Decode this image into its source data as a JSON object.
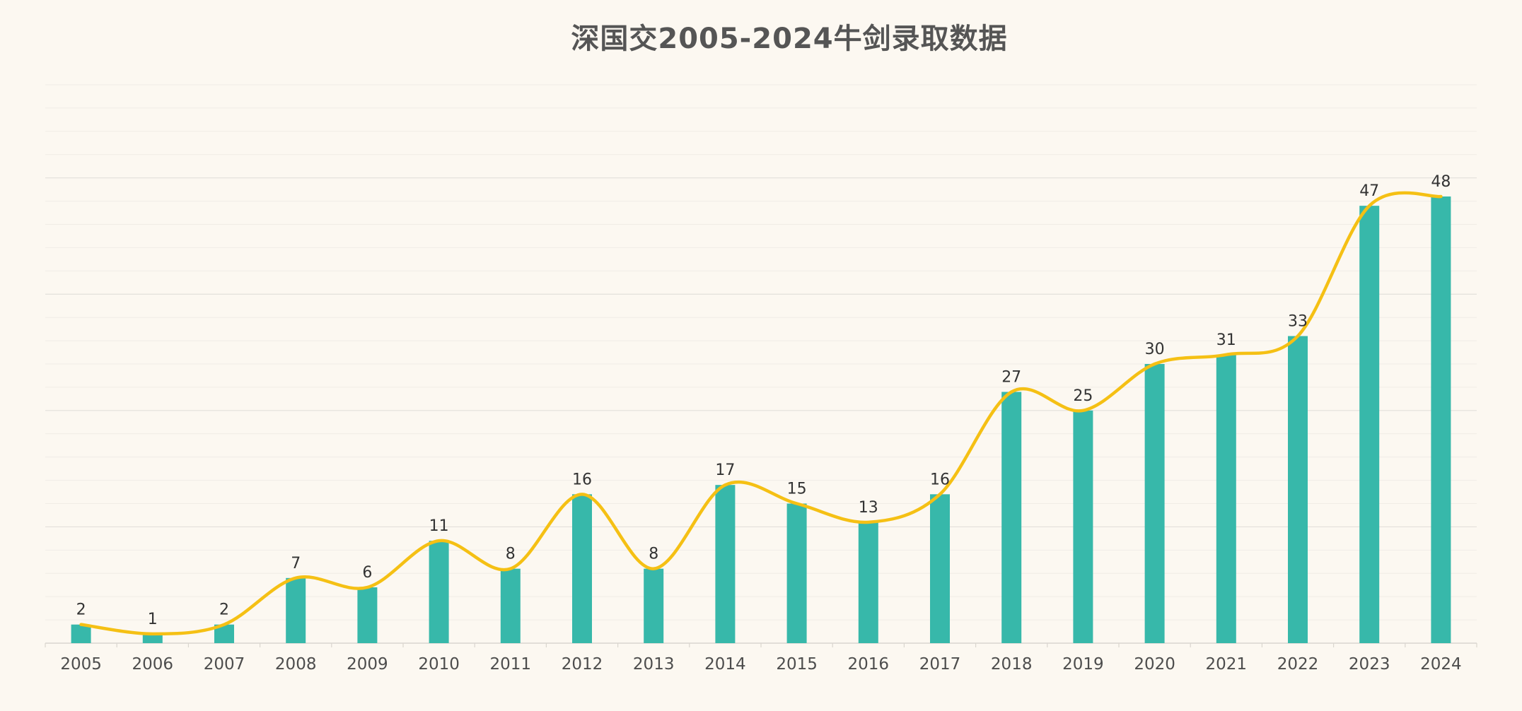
{
  "chart_data": {
    "type": "bar",
    "title": "深国交2005-2024牛剑录取数据",
    "categories": [
      "2005",
      "2006",
      "2007",
      "2008",
      "2009",
      "2010",
      "2011",
      "2012",
      "2013",
      "2014",
      "2015",
      "2016",
      "2017",
      "2018",
      "2019",
      "2020",
      "2021",
      "2022",
      "2023",
      "2024"
    ],
    "series": [
      {
        "type": "bar",
        "values": [
          2,
          1,
          2,
          7,
          6,
          11,
          8,
          16,
          8,
          17,
          15,
          13,
          16,
          27,
          25,
          30,
          31,
          33,
          47,
          48
        ]
      },
      {
        "type": "line",
        "smooth": true,
        "values": [
          2,
          1,
          2,
          7,
          6,
          11,
          8,
          16,
          8,
          17,
          15,
          13,
          16,
          27,
          25,
          30,
          31,
          33,
          47,
          48
        ]
      }
    ],
    "data_labels": true,
    "ylim": [
      0,
      60
    ],
    "grid": true,
    "colors": {
      "bar": "#37b8aa",
      "line": "#f5c014",
      "background": "#fcf8f1",
      "grid_major": "#e3e0db",
      "grid_minor": "#f0ece6"
    }
  }
}
